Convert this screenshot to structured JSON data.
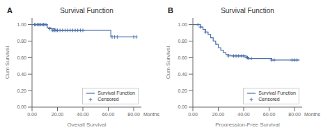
{
  "chart_data": [
    {
      "type": "line",
      "title": "Survival Function",
      "panel_label": "A",
      "annotation": "Months",
      "x_label": "Overall Survival",
      "y_label": "Cum Survival",
      "xlim": [
        0,
        86
      ],
      "ylim": [
        0.0,
        1.08
      ],
      "xticks": [
        {
          "value": 0,
          "label": "0.00"
        },
        {
          "value": 20,
          "label": "20.00"
        },
        {
          "value": 40,
          "label": "40.00"
        },
        {
          "value": 60,
          "label": "60.00"
        },
        {
          "value": 80,
          "label": "80.00"
        }
      ],
      "yticks": [
        {
          "value": 0,
          "label": "0.00"
        },
        {
          "value": 0.2,
          "label": "0.20"
        },
        {
          "value": 0.4,
          "label": "0.40"
        },
        {
          "value": 0.6,
          "label": "0.60"
        },
        {
          "value": 0.8,
          "label": "0.80"
        },
        {
          "value": 1.0,
          "label": "1.00"
        }
      ],
      "grid": false,
      "legend": "lower right",
      "series": [
        {
          "name": "Survival Function",
          "type": "step",
          "color": "#4a6fa8",
          "x": [
            0,
            12,
            15,
            18,
            62,
            82
          ],
          "values": [
            1.0,
            0.96,
            0.95,
            0.93,
            0.85,
            0.85
          ]
        },
        {
          "name": "Censored",
          "type": "scatter",
          "marker": "plus",
          "color": "#4a6fa8",
          "x": [
            2,
            3,
            4,
            5,
            6,
            7,
            8,
            9,
            10,
            11,
            14,
            16,
            17,
            18,
            19,
            20,
            22,
            24,
            26,
            28,
            30,
            32,
            34,
            36,
            38,
            40,
            63,
            65,
            67,
            80,
            82
          ],
          "values": [
            1.0,
            1.0,
            1.0,
            1.0,
            1.0,
            1.0,
            1.0,
            1.0,
            1.0,
            1.0,
            0.95,
            0.93,
            0.93,
            0.93,
            0.93,
            0.93,
            0.93,
            0.93,
            0.93,
            0.93,
            0.93,
            0.93,
            0.93,
            0.93,
            0.93,
            0.93,
            0.85,
            0.85,
            0.85,
            0.85,
            0.85
          ]
        }
      ]
    },
    {
      "type": "line",
      "title": "Survival Function",
      "panel_label": "B",
      "annotation": "Months",
      "x_label": "Progression-Free Survival",
      "y_label": "Cum Survival",
      "xlim": [
        0,
        86
      ],
      "ylim": [
        0.0,
        1.08
      ],
      "xticks": [
        {
          "value": 0,
          "label": "0.00"
        },
        {
          "value": 20,
          "label": "20.00"
        },
        {
          "value": 40,
          "label": "40.00"
        },
        {
          "value": 60,
          "label": "60.00"
        },
        {
          "value": 80,
          "label": "80.00"
        }
      ],
      "yticks": [
        {
          "value": 0,
          "label": "0.00"
        },
        {
          "value": 0.2,
          "label": "0.20"
        },
        {
          "value": 0.4,
          "label": "0.40"
        },
        {
          "value": 0.6,
          "label": "0.60"
        },
        {
          "value": 0.8,
          "label": "0.80"
        },
        {
          "value": 1.0,
          "label": "1.00"
        }
      ],
      "grid": false,
      "legend": "lower right",
      "series": [
        {
          "name": "Survival Function",
          "type": "step",
          "color": "#4a6fa8",
          "x": [
            0,
            6,
            8,
            10,
            12,
            14,
            16,
            18,
            20,
            22,
            24,
            26,
            28,
            30,
            35,
            38,
            40,
            42,
            44,
            46,
            60,
            62,
            78,
            84
          ],
          "values": [
            1.0,
            0.97,
            0.94,
            0.91,
            0.88,
            0.84,
            0.8,
            0.76,
            0.72,
            0.69,
            0.66,
            0.64,
            0.63,
            0.62,
            0.62,
            0.62,
            0.62,
            0.6,
            0.59,
            0.59,
            0.59,
            0.57,
            0.57,
            0.57
          ]
        },
        {
          "name": "Censored",
          "type": "scatter",
          "marker": "plus",
          "color": "#4a6fa8",
          "x": [
            4,
            6,
            10,
            28,
            32,
            34,
            36,
            38,
            40,
            42,
            43,
            44,
            46,
            62,
            64,
            78,
            80,
            82
          ],
          "values": [
            1.0,
            0.97,
            0.91,
            0.62,
            0.62,
            0.62,
            0.62,
            0.62,
            0.62,
            0.6,
            0.6,
            0.59,
            0.59,
            0.57,
            0.57,
            0.57,
            0.57,
            0.57
          ]
        }
      ]
    }
  ]
}
